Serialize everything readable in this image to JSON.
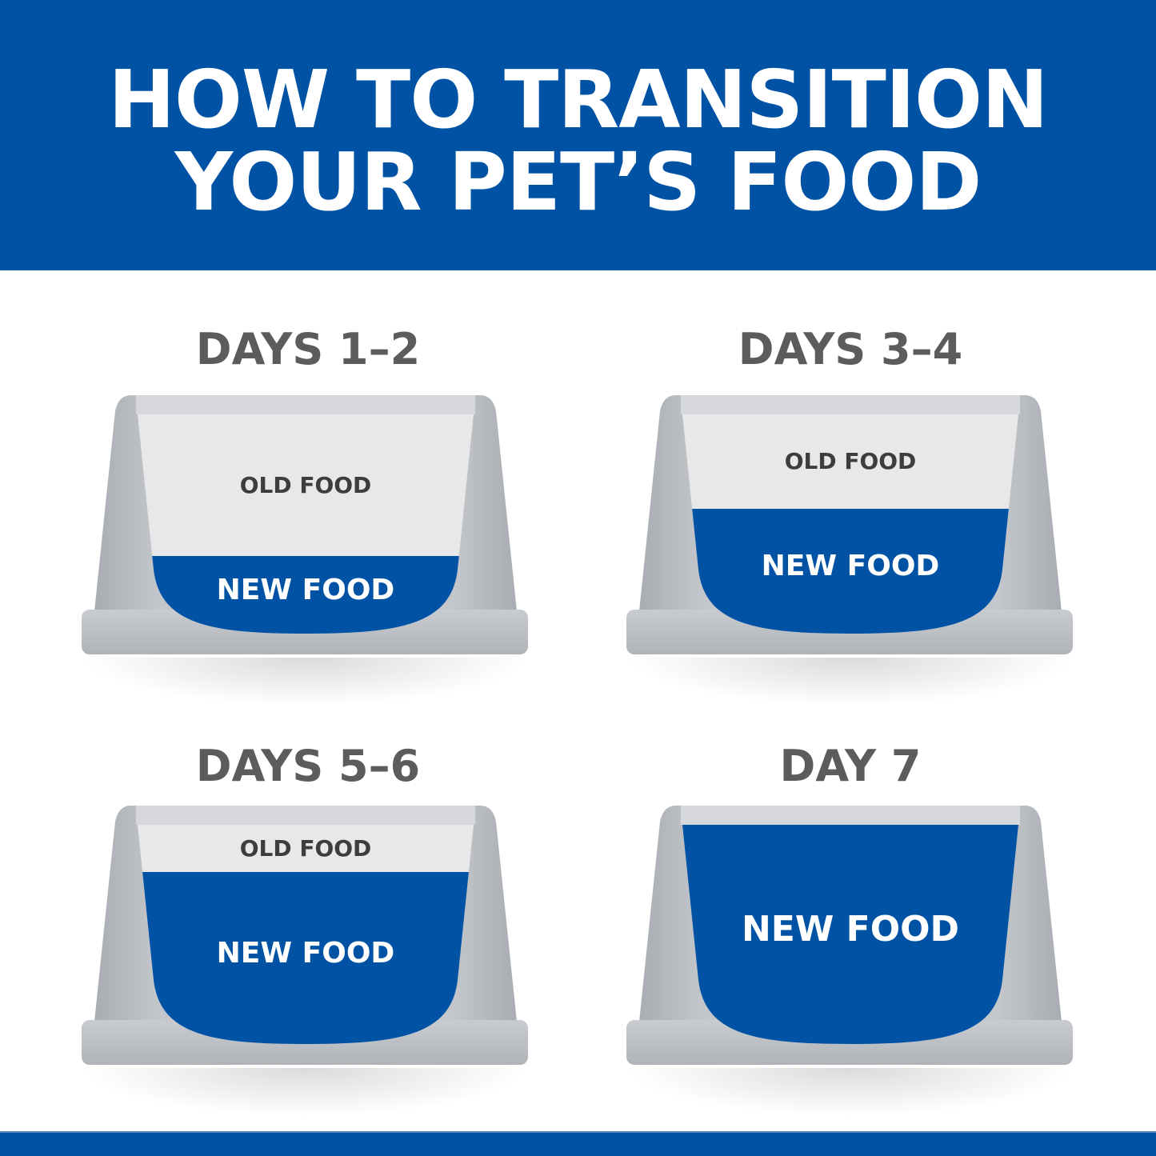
{
  "title": {
    "line1": "HOW TO TRANSITION",
    "line2": "YOUR PET’S FOOD"
  },
  "colors": {
    "brand_blue": "#0052a5",
    "old_food": "#e8e8e9",
    "bowl": "#b9bdc2",
    "label_gray": "#5c5c5c"
  },
  "steps": [
    {
      "label": "DAYS 1–2",
      "old_food": "OLD FOOD",
      "new_food": "NEW FOOD",
      "new_fraction": 0.25
    },
    {
      "label": "DAYS 3–4",
      "old_food": "OLD FOOD",
      "new_food": "NEW FOOD",
      "new_fraction": 0.5
    },
    {
      "label": "DAYS 5–6",
      "old_food": "OLD FOOD",
      "new_food": "NEW FOOD",
      "new_fraction": 0.75
    },
    {
      "label": "DAY 7",
      "new_food": "NEW FOOD",
      "new_fraction": 1.0
    }
  ]
}
